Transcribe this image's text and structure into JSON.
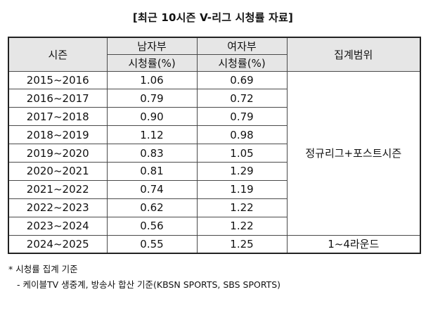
{
  "title": "[최근 10시즌 V-리그 시청률 자료]",
  "table": {
    "headers": {
      "season": "시즌",
      "men": "남자부",
      "women": "여자부",
      "rating_unit": "시청률(%)",
      "scope": "집계범위"
    },
    "rows": [
      {
        "season": "2015~2016",
        "men": "1.06",
        "women": "0.69"
      },
      {
        "season": "2016~2017",
        "men": "0.79",
        "women": "0.72"
      },
      {
        "season": "2017~2018",
        "men": "0.90",
        "women": "0.79"
      },
      {
        "season": "2018~2019",
        "men": "1.12",
        "women": "0.98"
      },
      {
        "season": "2019~2020",
        "men": "0.83",
        "women": "1.05"
      },
      {
        "season": "2020~2021",
        "men": "0.81",
        "women": "1.29"
      },
      {
        "season": "2021~2022",
        "men": "0.74",
        "women": "1.19"
      },
      {
        "season": "2022~2023",
        "men": "0.62",
        "women": "1.22"
      },
      {
        "season": "2023~2024",
        "men": "0.56",
        "women": "1.22"
      },
      {
        "season": "2024~2025",
        "men": "0.55",
        "women": "1.25"
      }
    ],
    "scope_regular_post": "정규리그+포스트시즌",
    "scope_rounds": "1~4라운드"
  },
  "notes": {
    "line1": "* 시청률 집계 기준",
    "line2": "- 케이블TV 생중계, 방송사 합산 기준(KBSN SPORTS, SBS SPORTS)"
  }
}
